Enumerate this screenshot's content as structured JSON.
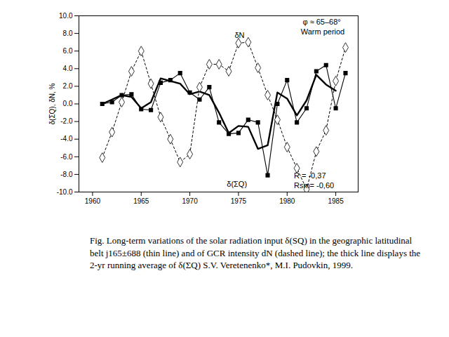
{
  "chart_data": {
    "type": "line",
    "caption": "Fig.  Long-term variations of the solar radiation input δ(SQ) in the geographic latitudinal belt j165±688 (thin line) and of GCR intensity dN (dashed line); the thick line displays the 2-yr running average of δ(ΣQ) S.V. Veretenenko*, M.I. Pudovkin, 1999.",
    "y_label": "δ(ΣQ), δN, %",
    "xlim": [
      1958.6,
      1987.3
    ],
    "xticks": [
      1960,
      1965,
      1970,
      1975,
      1980,
      1985
    ],
    "ylim": [
      -10,
      10
    ],
    "yticks": [
      {
        "value": -10,
        "label": "-10.0"
      },
      {
        "value": -8,
        "label": "-8.0"
      },
      {
        "value": -6,
        "label": "-6.0"
      },
      {
        "value": -4,
        "label": "-4.0"
      },
      {
        "value": -2,
        "label": "-2.0"
      },
      {
        "value": 0,
        "label": "0.0"
      },
      {
        "value": 2,
        "label": "2.0"
      },
      {
        "value": 4,
        "label": "4.0"
      },
      {
        "value": 6,
        "label": "6.0"
      },
      {
        "value": 8,
        "label": "8.0"
      },
      {
        "value": 10,
        "label": "10.0"
      }
    ],
    "grid": false,
    "series": [
      {
        "color": "#000000",
        "marker": "square",
        "line_style": "thin",
        "x": [
          1961,
          1962,
          1963,
          1964,
          1965,
          1966,
          1967,
          1968,
          1969,
          1970,
          1971,
          1972,
          1973,
          1974,
          1975,
          1976,
          1977,
          1978,
          1979,
          1980,
          1981,
          1982,
          1983,
          1984,
          1985,
          1986
        ],
        "values": [
          0.0,
          0.2,
          1.0,
          1.1,
          -0.6,
          -0.7,
          2.4,
          2.7,
          3.5,
          1.3,
          0.5,
          1.9,
          -2.1,
          -3.4,
          -3.3,
          -1.8,
          -2.1,
          -8.1,
          0.0,
          2.7,
          -2.1,
          -0.5,
          3.7,
          4.4,
          -0.5,
          3.5
        ]
      },
      {
        "color": "#000000",
        "marker": "none",
        "line_style": "thick",
        "x": [
          1961,
          1962,
          1963,
          1964,
          1965,
          1966,
          1967,
          1968,
          1969,
          1970,
          1971,
          1972,
          1973,
          1974,
          1975,
          1976,
          1977,
          1978,
          1979,
          1980,
          1981,
          1982,
          1983,
          1984,
          1985
        ],
        "values": [
          0.0,
          0.5,
          1.0,
          0.8,
          -0.5,
          0.2,
          2.9,
          2.6,
          2.3,
          1.1,
          1.4,
          1.0,
          -1.0,
          -3.3,
          -2.5,
          -2.6,
          -5.1,
          -4.7,
          1.3,
          0.6,
          -1.3,
          0.4,
          3.3,
          2.2,
          1.5
        ]
      },
      {
        "color": "#000000",
        "marker": "diamond",
        "line_style": "dashed",
        "x": [
          1961,
          1962,
          1963,
          1964,
          1965,
          1966,
          1967,
          1968,
          1969,
          1970,
          1971,
          1972,
          1973,
          1974,
          1975,
          1976,
          1977,
          1978,
          1979,
          1980,
          1981,
          1982,
          1983,
          1984,
          1985,
          1986
        ],
        "values": [
          -6.1,
          -3.2,
          0.2,
          3.7,
          6.0,
          2.3,
          -1.5,
          -4.0,
          -6.6,
          -5.7,
          1.9,
          4.5,
          4.5,
          3.7,
          6.9,
          7.0,
          4.1,
          1.0,
          -1.8,
          -4.9,
          -7.3,
          -9.7,
          -5.4,
          -3.0,
          2.6,
          6.4
        ]
      }
    ],
    "annotations": [
      {
        "text": "φ ≈ 65–68°",
        "x": 1981.6,
        "y": 9.3
      },
      {
        "text": "Warm period",
        "x": 1981.4,
        "y": 8.2
      },
      {
        "text": "δN",
        "x": 1974.6,
        "y": 7.8
      },
      {
        "text": "δ(ΣQ)",
        "x": 1973.8,
        "y": -9.1
      },
      {
        "text": "R = -0,37",
        "x": 1980.7,
        "y": -8.2
      },
      {
        "text": "Rsm= -0,60",
        "x": 1980.7,
        "y": -9.3
      }
    ]
  }
}
